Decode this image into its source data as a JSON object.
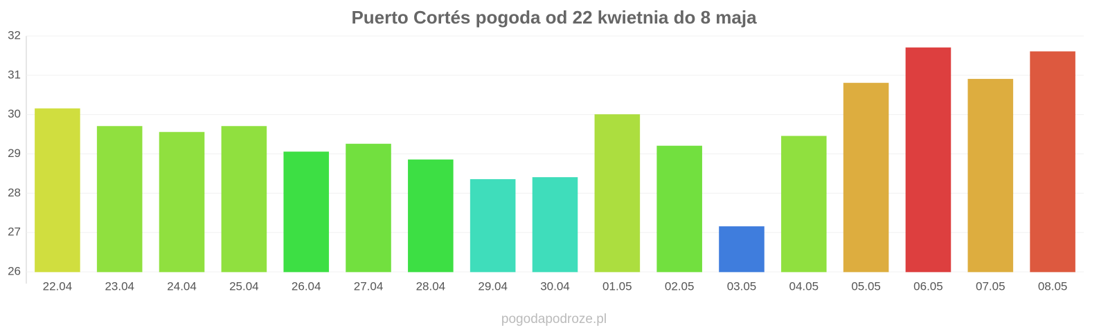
{
  "chart_data": {
    "type": "bar",
    "title": "Puerto Cortés pogoda od 22 kwietnia do 8 maja",
    "categories": [
      "22.04",
      "23.04",
      "24.04",
      "25.04",
      "26.04",
      "27.04",
      "28.04",
      "29.04",
      "30.04",
      "01.05",
      "02.05",
      "03.05",
      "04.05",
      "05.05",
      "06.05",
      "07.05",
      "08.05"
    ],
    "values": [
      30.15,
      29.7,
      29.55,
      29.7,
      29.05,
      29.25,
      28.85,
      28.35,
      28.4,
      30.0,
      29.2,
      27.15,
      29.45,
      30.8,
      31.7,
      30.9,
      31.6
    ],
    "colors": [
      "#cddc35",
      "#8ade35",
      "#8ade35",
      "#8ade35",
      "#33dd3a",
      "#6ade35",
      "#33dd3a",
      "#35dbb7",
      "#35dbb7",
      "#a8dc35",
      "#6ade35",
      "#3576db",
      "#8ade35",
      "#dba935",
      "#db3535",
      "#dba935",
      "#db5035"
    ],
    "ylim": [
      26,
      32
    ],
    "yticks": [
      26,
      27,
      28,
      29,
      30,
      31,
      32
    ],
    "grid": true,
    "source": "pogodapodroze.pl"
  }
}
